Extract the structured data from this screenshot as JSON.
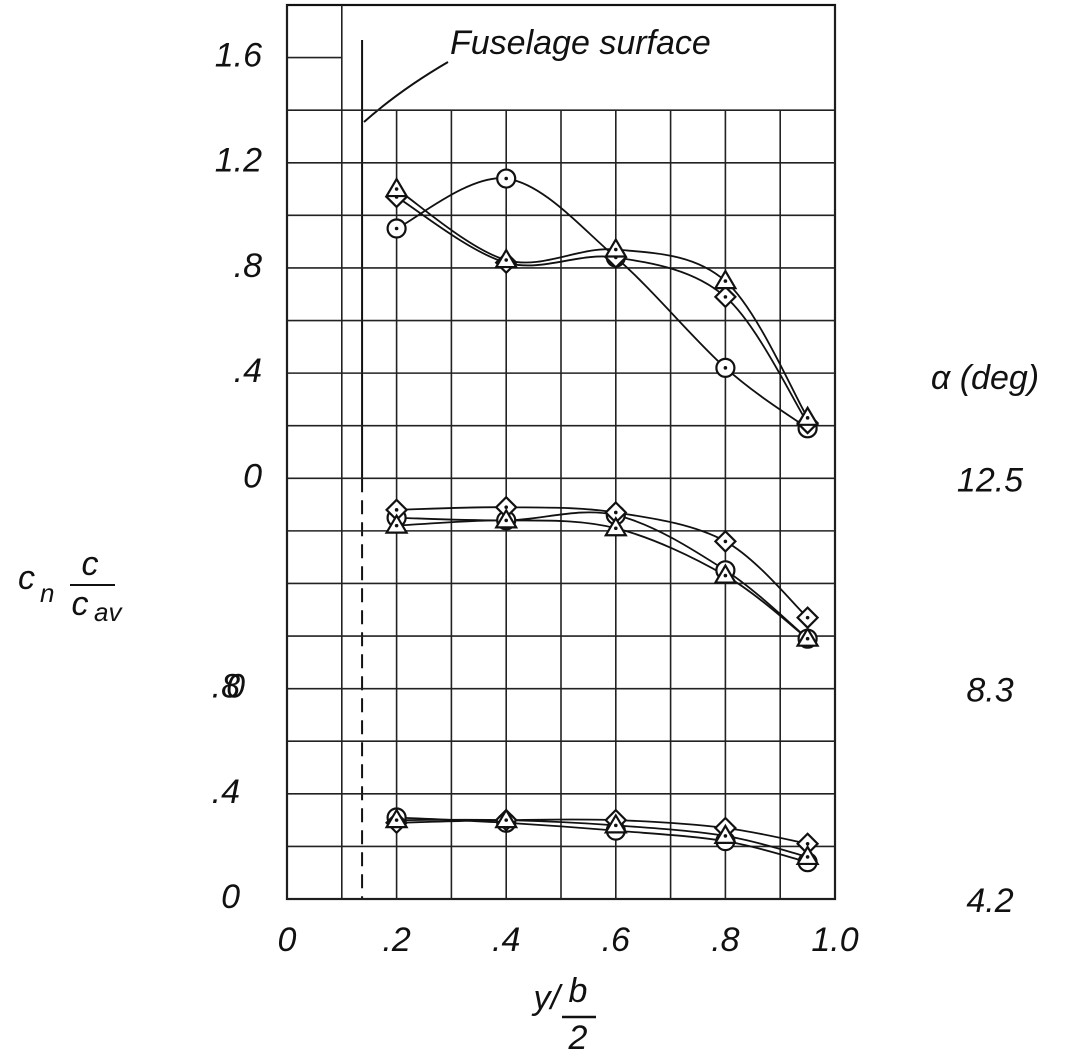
{
  "chart_data": {
    "type": "line",
    "xlim": [
      0,
      1
    ],
    "xticks": [
      0,
      {
        "value": 0.2,
        "label": ".2"
      },
      {
        "value": 0.4,
        "label": ".4"
      },
      {
        "value": 0.6,
        "label": ".6"
      },
      {
        "value": 0.8,
        "label": ".8"
      },
      {
        "value": 1,
        "label": "1.0"
      }
    ],
    "xgrid": [
      0,
      0.1,
      0.2,
      0.3,
      0.4,
      0.5,
      0.6,
      0.7,
      0.8,
      0.9,
      1
    ],
    "xgrid_full": [
      0,
      0.1,
      1
    ],
    "xlabel": {
      "lead": "y/",
      "frac_num": "b",
      "frac_den": "2"
    },
    "ylabel": {
      "c": "c",
      "sub": "n",
      "num": "c",
      "den": "c",
      "den_sub": "av"
    },
    "legend_title": "α (deg)",
    "annotation": {
      "text": "Fuselage surface",
      "x": 0.137
    },
    "x": [
      0.2,
      0.4,
      0.6,
      0.8,
      0.95
    ],
    "panels": [
      {
        "alpha": "12.5",
        "ylim": [
          0,
          1.8
        ],
        "yticks": [
          0,
          {
            "value": 0.4,
            "label": ".4"
          },
          {
            "value": 0.8,
            "label": ".8"
          },
          1.2,
          1.6
        ],
        "ygrid": [
          0,
          0.2,
          0.4,
          0.6,
          0.8,
          1.0,
          1.2,
          1.4
        ],
        "ygrid_short": [
          1.6
        ],
        "series": [
          {
            "marker": "circle",
            "values": [
              0.95,
              1.14,
              0.84,
              0.42,
              0.19
            ]
          },
          {
            "marker": "diamond",
            "values": [
              1.07,
              0.82,
              0.84,
              0.69,
              0.21
            ]
          },
          {
            "marker": "triangle",
            "values": [
              1.1,
              0.83,
              0.87,
              0.75,
              0.23
            ]
          }
        ]
      },
      {
        "alpha": "8.3",
        "ylim": [
          0,
          0.8
        ],
        "yticks": [
          0
        ],
        "ygrid": [
          0,
          0.2,
          0.4,
          0.6
        ],
        "ygrid_short": [],
        "series": [
          {
            "marker": "circle",
            "values": [
              0.65,
              0.64,
              0.66,
              0.45,
              0.19
            ]
          },
          {
            "marker": "diamond",
            "values": [
              0.68,
              0.69,
              0.67,
              0.56,
              0.27
            ]
          },
          {
            "marker": "triangle",
            "values": [
              0.62,
              0.64,
              0.61,
              0.43,
              0.19
            ]
          }
        ]
      },
      {
        "alpha": "4.2",
        "ylim": [
          0,
          0.8
        ],
        "yticks": [
          0,
          {
            "value": 0.4,
            "label": ".4"
          },
          {
            "value": 0.8,
            "label": ".8"
          }
        ],
        "ygrid": [
          0,
          0.2,
          0.4,
          0.6
        ],
        "ygrid_short": [],
        "series": [
          {
            "marker": "circle",
            "values": [
              0.31,
              0.29,
              0.26,
              0.22,
              0.14
            ]
          },
          {
            "marker": "diamond",
            "values": [
              0.29,
              0.3,
              0.3,
              0.27,
              0.21
            ]
          },
          {
            "marker": "triangle",
            "values": [
              0.3,
              0.3,
              0.28,
              0.24,
              0.16
            ]
          }
        ]
      }
    ]
  }
}
